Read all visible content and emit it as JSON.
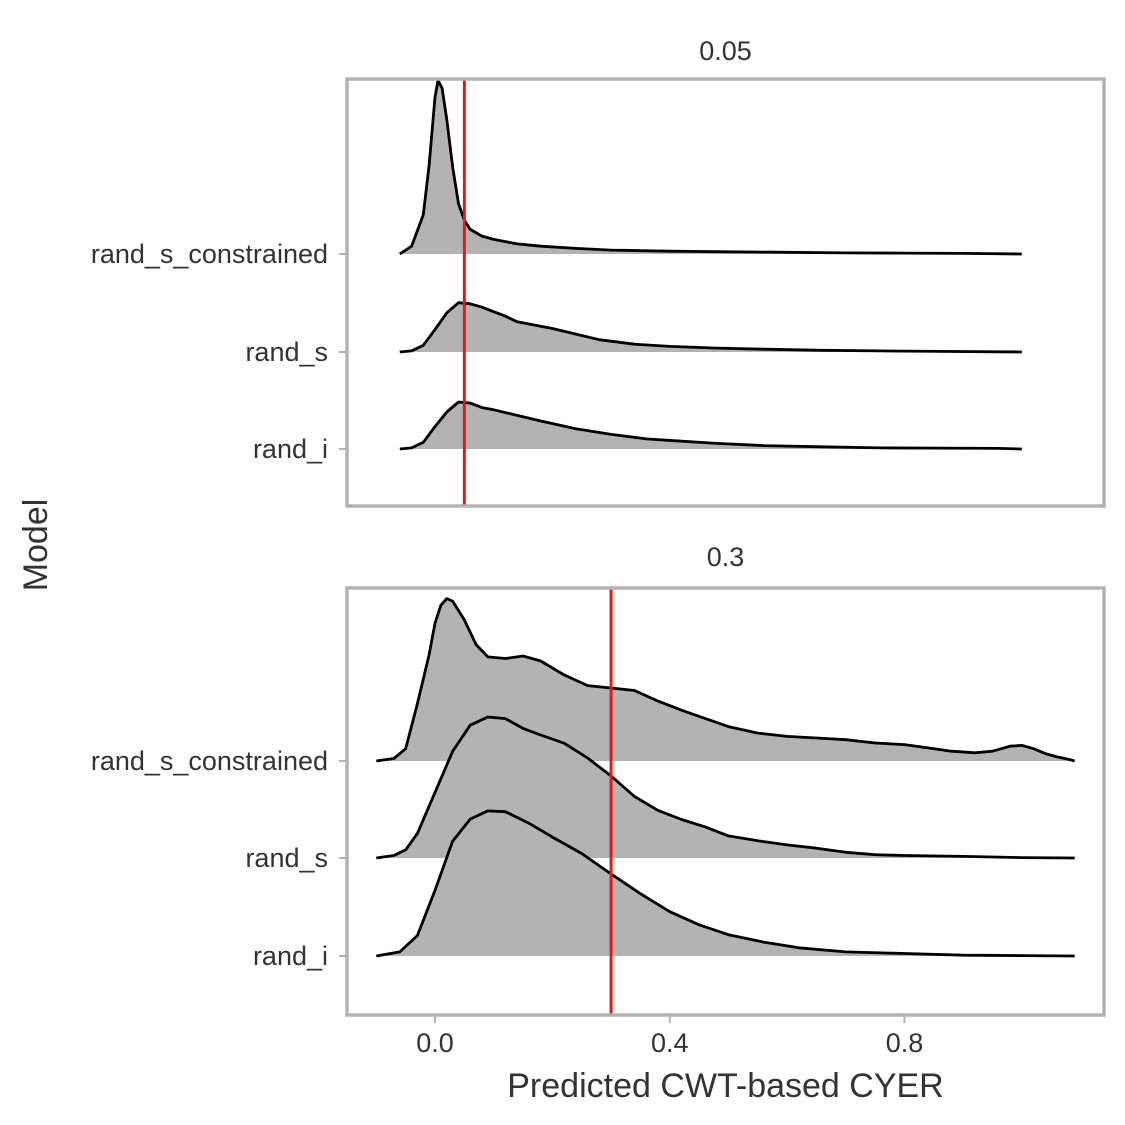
{
  "chart_data": {
    "type": "ridgeline",
    "xlabel": "Predicted CWT-based CYER",
    "ylabel": "Model",
    "xlim": [
      -0.15,
      1.14
    ],
    "x_ticks": [
      0.0,
      0.4,
      0.8
    ],
    "x_tick_labels": [
      "0.0",
      "0.4",
      "0.8"
    ],
    "categories": [
      "rand_i",
      "rand_s",
      "rand_s_constrained"
    ],
    "fill_color": "#b3b3b3",
    "line_color": "#000000",
    "ref_line_color": "#e31a1c",
    "grid": false,
    "legend": "none",
    "facets": [
      {
        "title": "0.05",
        "ref_line": 0.05,
        "series": [
          {
            "name": "rand_i",
            "points": [
              [
                -0.06,
                0.0
              ],
              [
                -0.04,
                0.01
              ],
              [
                -0.02,
                0.06
              ],
              [
                0.0,
                0.2
              ],
              [
                0.02,
                0.33
              ],
              [
                0.04,
                0.42
              ],
              [
                0.06,
                0.41
              ],
              [
                0.08,
                0.37
              ],
              [
                0.1,
                0.35
              ],
              [
                0.14,
                0.3
              ],
              [
                0.18,
                0.25
              ],
              [
                0.24,
                0.18
              ],
              [
                0.3,
                0.13
              ],
              [
                0.36,
                0.09
              ],
              [
                0.42,
                0.07
              ],
              [
                0.48,
                0.05
              ],
              [
                0.56,
                0.03
              ],
              [
                0.66,
                0.02
              ],
              [
                0.76,
                0.01
              ],
              [
                0.86,
                0.008
              ],
              [
                0.96,
                0.005
              ],
              [
                1.0,
                0.0
              ]
            ]
          },
          {
            "name": "rand_s",
            "points": [
              [
                -0.06,
                0.0
              ],
              [
                -0.04,
                0.01
              ],
              [
                -0.02,
                0.06
              ],
              [
                0.0,
                0.2
              ],
              [
                0.02,
                0.35
              ],
              [
                0.04,
                0.44
              ],
              [
                0.06,
                0.43
              ],
              [
                0.08,
                0.4
              ],
              [
                0.1,
                0.36
              ],
              [
                0.12,
                0.32
              ],
              [
                0.14,
                0.27
              ],
              [
                0.16,
                0.25
              ],
              [
                0.2,
                0.21
              ],
              [
                0.24,
                0.16
              ],
              [
                0.28,
                0.11
              ],
              [
                0.34,
                0.07
              ],
              [
                0.4,
                0.05
              ],
              [
                0.48,
                0.035
              ],
              [
                0.56,
                0.025
              ],
              [
                0.66,
                0.015
              ],
              [
                0.76,
                0.01
              ],
              [
                0.86,
                0.005
              ],
              [
                0.96,
                0.002
              ],
              [
                1.0,
                0.0
              ]
            ]
          },
          {
            "name": "rand_s_constrained",
            "points": [
              [
                -0.06,
                0.0
              ],
              [
                -0.04,
                0.07
              ],
              [
                -0.02,
                0.35
              ],
              [
                -0.01,
                0.8
              ],
              [
                0.0,
                1.4
              ],
              [
                0.005,
                1.55
              ],
              [
                0.012,
                1.48
              ],
              [
                0.02,
                1.2
              ],
              [
                0.03,
                0.78
              ],
              [
                0.04,
                0.45
              ],
              [
                0.05,
                0.3
              ],
              [
                0.06,
                0.22
              ],
              [
                0.08,
                0.16
              ],
              [
                0.1,
                0.13
              ],
              [
                0.14,
                0.09
              ],
              [
                0.18,
                0.07
              ],
              [
                0.24,
                0.05
              ],
              [
                0.3,
                0.035
              ],
              [
                0.4,
                0.025
              ],
              [
                0.5,
                0.02
              ],
              [
                0.6,
                0.015
              ],
              [
                0.7,
                0.01
              ],
              [
                0.8,
                0.008
              ],
              [
                0.9,
                0.005
              ],
              [
                1.0,
                0.0
              ]
            ]
          }
        ]
      },
      {
        "title": "0.3",
        "ref_line": 0.3,
        "series": [
          {
            "name": "rand_i",
            "points": [
              [
                -0.1,
                0.0
              ],
              [
                -0.06,
                0.05
              ],
              [
                -0.03,
                0.25
              ],
              [
                0.0,
                0.8
              ],
              [
                0.03,
                1.4
              ],
              [
                0.06,
                1.67
              ],
              [
                0.09,
                1.77
              ],
              [
                0.12,
                1.76
              ],
              [
                0.16,
                1.62
              ],
              [
                0.2,
                1.45
              ],
              [
                0.25,
                1.25
              ],
              [
                0.3,
                1.0
              ],
              [
                0.35,
                0.76
              ],
              [
                0.4,
                0.54
              ],
              [
                0.45,
                0.38
              ],
              [
                0.5,
                0.26
              ],
              [
                0.56,
                0.17
              ],
              [
                0.62,
                0.1
              ],
              [
                0.7,
                0.05
              ],
              [
                0.8,
                0.03
              ],
              [
                0.9,
                0.01
              ],
              [
                1.0,
                0.005
              ],
              [
                1.09,
                0.0
              ]
            ]
          },
          {
            "name": "rand_s",
            "points": [
              [
                -0.1,
                0.0
              ],
              [
                -0.07,
                0.03
              ],
              [
                -0.05,
                0.1
              ],
              [
                -0.03,
                0.3
              ],
              [
                0.0,
                0.8
              ],
              [
                0.03,
                1.3
              ],
              [
                0.06,
                1.62
              ],
              [
                0.09,
                1.72
              ],
              [
                0.12,
                1.7
              ],
              [
                0.15,
                1.58
              ],
              [
                0.18,
                1.5
              ],
              [
                0.22,
                1.4
              ],
              [
                0.26,
                1.22
              ],
              [
                0.3,
                1.0
              ],
              [
                0.34,
                0.75
              ],
              [
                0.38,
                0.58
              ],
              [
                0.42,
                0.47
              ],
              [
                0.46,
                0.38
              ],
              [
                0.5,
                0.27
              ],
              [
                0.55,
                0.21
              ],
              [
                0.6,
                0.16
              ],
              [
                0.65,
                0.12
              ],
              [
                0.7,
                0.07
              ],
              [
                0.75,
                0.04
              ],
              [
                0.8,
                0.03
              ],
              [
                0.9,
                0.02
              ],
              [
                1.0,
                0.005
              ],
              [
                1.09,
                0.0
              ]
            ]
          },
          {
            "name": "rand_s_constrained",
            "points": [
              [
                -0.1,
                0.0
              ],
              [
                -0.07,
                0.03
              ],
              [
                -0.05,
                0.15
              ],
              [
                -0.03,
                0.7
              ],
              [
                -0.01,
                1.3
              ],
              [
                0.0,
                1.68
              ],
              [
                0.01,
                1.9
              ],
              [
                0.02,
                1.98
              ],
              [
                0.03,
                1.95
              ],
              [
                0.05,
                1.72
              ],
              [
                0.07,
                1.42
              ],
              [
                0.09,
                1.27
              ],
              [
                0.12,
                1.25
              ],
              [
                0.15,
                1.28
              ],
              [
                0.18,
                1.22
              ],
              [
                0.22,
                1.05
              ],
              [
                0.26,
                0.92
              ],
              [
                0.3,
                0.89
              ],
              [
                0.34,
                0.86
              ],
              [
                0.38,
                0.73
              ],
              [
                0.42,
                0.62
              ],
              [
                0.46,
                0.52
              ],
              [
                0.5,
                0.42
              ],
              [
                0.55,
                0.34
              ],
              [
                0.6,
                0.3
              ],
              [
                0.65,
                0.28
              ],
              [
                0.7,
                0.26
              ],
              [
                0.75,
                0.22
              ],
              [
                0.8,
                0.2
              ],
              [
                0.84,
                0.16
              ],
              [
                0.88,
                0.12
              ],
              [
                0.92,
                0.1
              ],
              [
                0.95,
                0.12
              ],
              [
                0.98,
                0.18
              ],
              [
                1.0,
                0.19
              ],
              [
                1.02,
                0.15
              ],
              [
                1.04,
                0.09
              ],
              [
                1.06,
                0.05
              ],
              [
                1.08,
                0.02
              ],
              [
                1.09,
                0.0
              ]
            ]
          }
        ]
      }
    ]
  }
}
